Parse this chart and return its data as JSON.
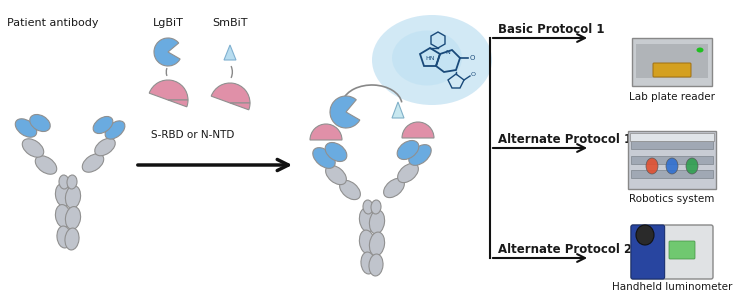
{
  "bg_color": "#ffffff",
  "blue_color": "#6aabe0",
  "blue_light": "#a8d0e8",
  "pink_color": "#e090a8",
  "pink_light": "#e8a8be",
  "gray_color": "#c0c4cc",
  "gray_ec": "#909090",
  "text_color": "#1a1a1a",
  "arrow_color": "#111111",
  "chem_color": "#1a4a7a",
  "figsize": [
    7.5,
    2.95
  ],
  "dpi": 100,
  "labels": {
    "patient_antibody": "Patient antibody",
    "lgbit": "LgBiT",
    "smbit": "SmBiT",
    "srbd": "S-RBD or N-NTD",
    "bp1": "Basic Protocol 1",
    "ap1": "Alternate Protocol 1",
    "ap2": "Alternate Protocol 2",
    "lpr": "Lab plate reader",
    "rob": "Robotics system",
    "hand": "Handheld luminometer"
  }
}
